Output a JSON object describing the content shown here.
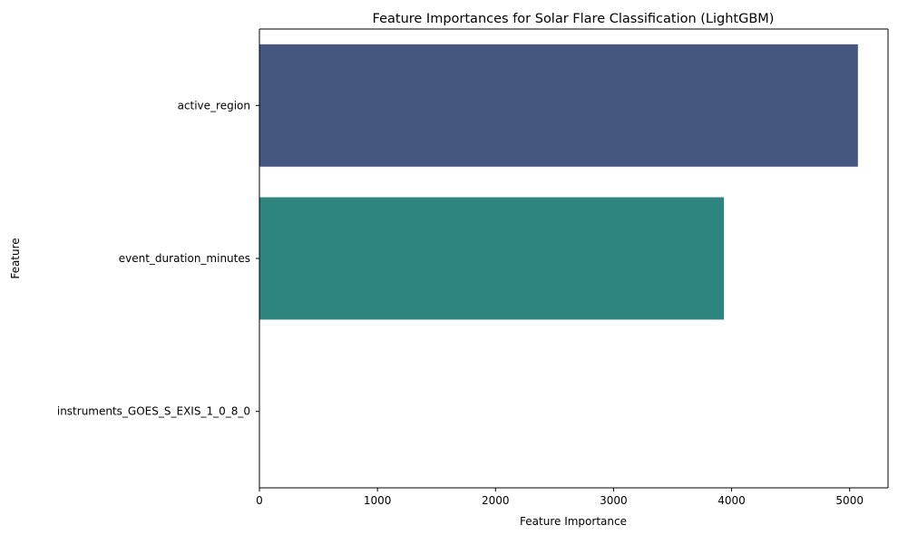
{
  "chart_data": {
    "type": "bar",
    "orientation": "horizontal",
    "title": "Feature Importances for Solar Flare Classification (LightGBM)",
    "xlabel": "Feature Importance",
    "ylabel": "Feature",
    "categories": [
      "active_region",
      "event_duration_minutes",
      "instruments_GOES_S_EXIS_1_0_8_0"
    ],
    "values": [
      5070,
      3935,
      0
    ],
    "colors": [
      "#455681",
      "#2e847f",
      "#7ad151"
    ],
    "xlim": [
      0,
      5325
    ],
    "xticks": [
      0,
      1000,
      2000,
      3000,
      4000,
      5000
    ],
    "xtick_labels": [
      "0",
      "1000",
      "2000",
      "3000",
      "4000",
      "5000"
    ],
    "grid": false,
    "legend": "none"
  }
}
